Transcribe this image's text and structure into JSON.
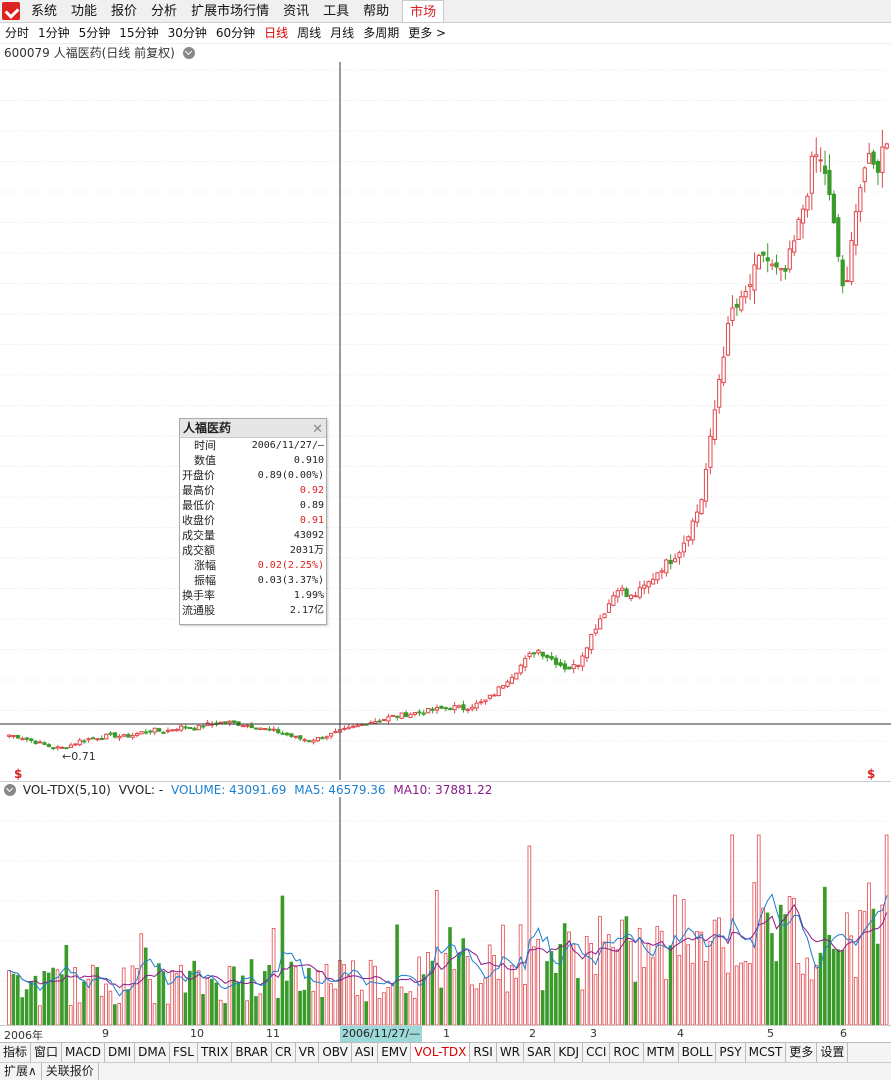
{
  "menubar": {
    "items": [
      "系统",
      "功能",
      "报价",
      "分析",
      "扩展市场行情",
      "资讯",
      "工具",
      "帮助"
    ],
    "active": "市场"
  },
  "periods": {
    "items": [
      "分时",
      "1分钟",
      "5分钟",
      "15分钟",
      "30分钟",
      "60分钟",
      "日线",
      "周线",
      "月线",
      "多周期",
      "更多 >"
    ],
    "active_index": 6
  },
  "title": "600079 人福医药(日线 前复权)",
  "price_panel": {
    "low_marker": "←0.71",
    "s_marker": "$"
  },
  "volume_header": {
    "name": "VOL-TDX(5,10)",
    "vvol": "VVOL: -",
    "volume": "VOLUME: 43091.69",
    "ma5": "MA5: 46579.36",
    "ma10": "MA10: 37881.22"
  },
  "x_axis": {
    "labels": [
      "2006年",
      "9",
      "10",
      "11",
      "1",
      "2",
      "3",
      "4",
      "5",
      "6"
    ],
    "cursor_label": "2006/11/27/—"
  },
  "indicator_tabs": [
    "指标",
    "窗口",
    "MACD",
    "DMI",
    "DMA",
    "FSL",
    "TRIX",
    "BRAR",
    "CR",
    "VR",
    "OBV",
    "ASI",
    "EMV",
    "VOL-TDX",
    "RSI",
    "WR",
    "SAR",
    "KDJ",
    "CCI",
    "ROC",
    "MTM",
    "BOLL",
    "PSY",
    "MCST",
    "更多",
    "设置"
  ],
  "indicator_active": "VOL-TDX",
  "bottom_tabs": [
    "扩展∧",
    "关联报价"
  ],
  "tooltip": {
    "title": "人福医药",
    "rows": [
      {
        "k": "时间",
        "v": "2006/11/27/—",
        "red": false,
        "indent": true
      },
      {
        "k": "数值",
        "v": "0.910",
        "red": false,
        "indent": true
      },
      {
        "k": "开盘价",
        "v": "0.89(0.00%)",
        "red": false,
        "indent": false
      },
      {
        "k": "最高价",
        "v": "0.92",
        "red": true,
        "indent": false
      },
      {
        "k": "最低价",
        "v": "0.89",
        "red": false,
        "indent": false
      },
      {
        "k": "收盘价",
        "v": "0.91",
        "red": true,
        "indent": false
      },
      {
        "k": "成交量",
        "v": "43092",
        "red": false,
        "indent": false
      },
      {
        "k": "成交额",
        "v": "2031万",
        "red": false,
        "indent": false
      },
      {
        "k": "涨幅",
        "v": "0.02(2.25%)",
        "red": true,
        "indent": true
      },
      {
        "k": "振幅",
        "v": "0.03(3.37%)",
        "red": false,
        "indent": true
      },
      {
        "k": "换手率",
        "v": "1.99%",
        "red": false,
        "indent": false
      },
      {
        "k": "流通股",
        "v": "2.17亿",
        "red": false,
        "indent": false
      }
    ]
  },
  "colors": {
    "up": "#e0464b",
    "down": "#3a9a2a",
    "ma5": "#1a7fd0",
    "ma10": "#8a1a8a",
    "accent": "#dd2222"
  },
  "chart_data": [
    {
      "type": "candlestick",
      "series_note": "daily price path (approximate close levels, 2006-08 to 2007-06)",
      "close_path": [
        0.8,
        0.79,
        0.77,
        0.75,
        0.73,
        0.72,
        0.74,
        0.77,
        0.78,
        0.79,
        0.8,
        0.79,
        0.8,
        0.82,
        0.83,
        0.82,
        0.84,
        0.85,
        0.84,
        0.86,
        0.87,
        0.88,
        0.87,
        0.86,
        0.85,
        0.83,
        0.82,
        0.8,
        0.78,
        0.77,
        0.78,
        0.8,
        0.82,
        0.84,
        0.86,
        0.88,
        0.89,
        0.91,
        0.92,
        0.93,
        0.94,
        0.95,
        0.96,
        0.97,
        0.96,
        0.98,
        1.0,
        1.05,
        1.12,
        1.18,
        1.25,
        1.32,
        1.28,
        1.24,
        1.2,
        1.22,
        1.35,
        1.48,
        1.58,
        1.7,
        1.62,
        1.66,
        1.72,
        1.8,
        1.85,
        1.92,
        2.05,
        2.2,
        2.6,
        3.05,
        3.35,
        3.4,
        3.55,
        3.7,
        3.6,
        3.55,
        3.75,
        4.0,
        4.3,
        4.2,
        3.8,
        3.4,
        4.0,
        4.25,
        4.2,
        4.4
      ],
      "lowest_label": "0.71"
    },
    {
      "type": "bar",
      "title": "VOL-TDX(5,10)",
      "series": [
        {
          "name": "VOLUME"
        },
        {
          "name": "MA5"
        },
        {
          "name": "MA10"
        }
      ],
      "latest": {
        "VOLUME": 43091.69,
        "MA5": 46579.36,
        "MA10": 37881.22
      }
    }
  ]
}
